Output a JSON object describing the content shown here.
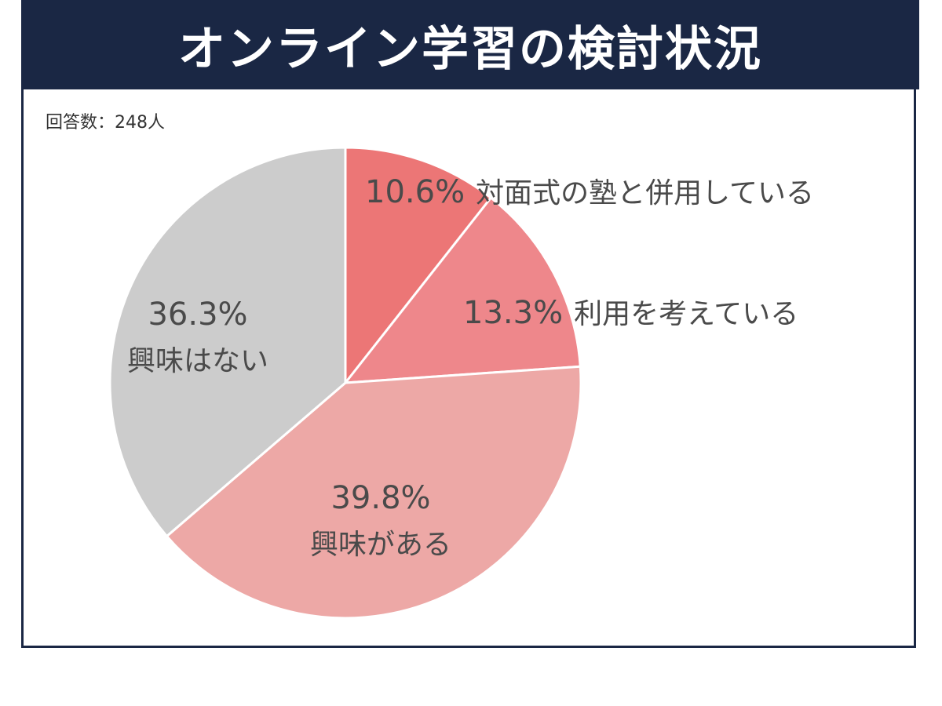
{
  "title": "オンライン学習の検討状況",
  "respondents_label": "回答数：248人",
  "colors": {
    "header_bg": "#1a2744",
    "border": "#1a2744",
    "label_text": "#4a4a4a"
  },
  "chart_data": {
    "type": "pie",
    "start_angle_deg": 0,
    "direction": "clockwise",
    "slices": [
      {
        "label": "対面式の塾と併用している",
        "value": 10.6,
        "value_label": "10.6%",
        "color": "#ec7676"
      },
      {
        "label": "利用を考えている",
        "value": 13.3,
        "value_label": "13.3%",
        "color": "#ee878b"
      },
      {
        "label": "興味がある",
        "value": 39.8,
        "value_label": "39.8%",
        "color": "#eda8a6"
      },
      {
        "label": "興味はない",
        "value": 36.3,
        "value_label": "36.3%",
        "color": "#cccccc"
      }
    ]
  }
}
